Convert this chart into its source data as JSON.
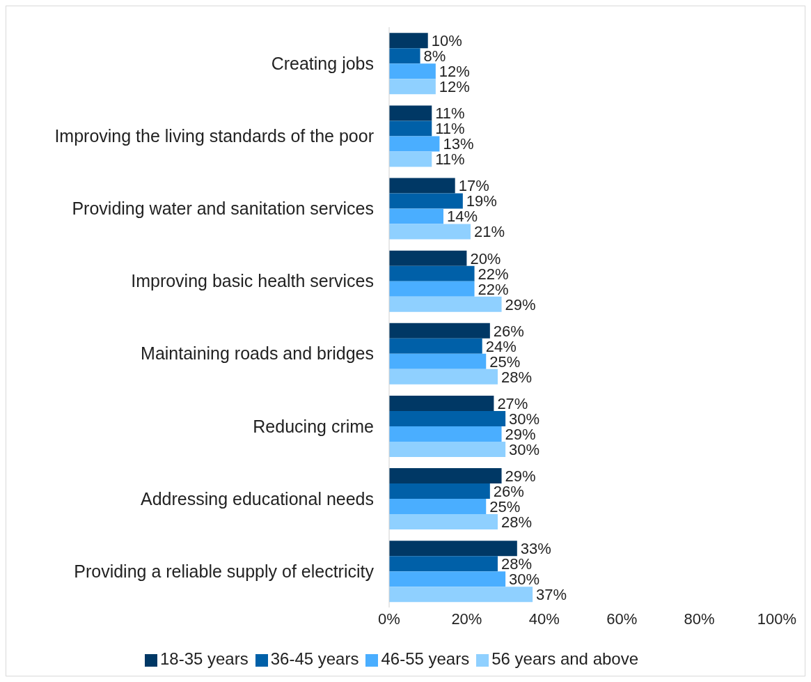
{
  "chart_data": {
    "type": "bar",
    "orientation": "horizontal",
    "categories": [
      "Creating jobs",
      "Improving the living standards of the poor",
      "Providing water and sanitation services",
      "Improving basic health services",
      "Maintaining roads and bridges",
      "Reducing crime",
      "Addressing educational needs",
      "Providing a reliable supply of electricity"
    ],
    "series": [
      {
        "name": "18-35 years",
        "color": "#003865",
        "values": [
          10,
          11,
          17,
          20,
          26,
          27,
          29,
          33
        ],
        "value_labels": [
          "10%",
          "11%",
          "17%",
          "20%",
          "26%",
          "27%",
          "29%",
          "33%"
        ]
      },
      {
        "name": "36-45 years",
        "color": "#0060a8",
        "values": [
          8,
          11,
          19,
          22,
          24,
          30,
          26,
          28
        ],
        "value_labels": [
          "8%",
          "11%",
          "19%",
          "22%",
          "24%",
          "30%",
          "26%",
          "28%"
        ]
      },
      {
        "name": "46-55 years",
        "color": "#4aaeff",
        "values": [
          12,
          13,
          14,
          22,
          25,
          29,
          25,
          30
        ],
        "value_labels": [
          "12%",
          "13%",
          "14%",
          "22%",
          "25%",
          "29%",
          "25%",
          "30%"
        ]
      },
      {
        "name": "56 years and above",
        "color": "#8fd0ff",
        "values": [
          12,
          11,
          21,
          29,
          28,
          30,
          28,
          37
        ],
        "value_labels": [
          "12%",
          "11%",
          "21%",
          "29%",
          "28%",
          "30%",
          "28%",
          "37%"
        ]
      }
    ],
    "xlim": [
      0,
      100
    ],
    "xticks": [
      {
        "value": 0,
        "label": "0%"
      },
      {
        "value": 20,
        "label": "20%"
      },
      {
        "value": 40,
        "label": "40%"
      },
      {
        "value": 60,
        "label": "60%"
      },
      {
        "value": 80,
        "label": "80%"
      },
      {
        "value": 100,
        "label": "100%"
      }
    ],
    "grid": false,
    "legend": "bottom"
  }
}
